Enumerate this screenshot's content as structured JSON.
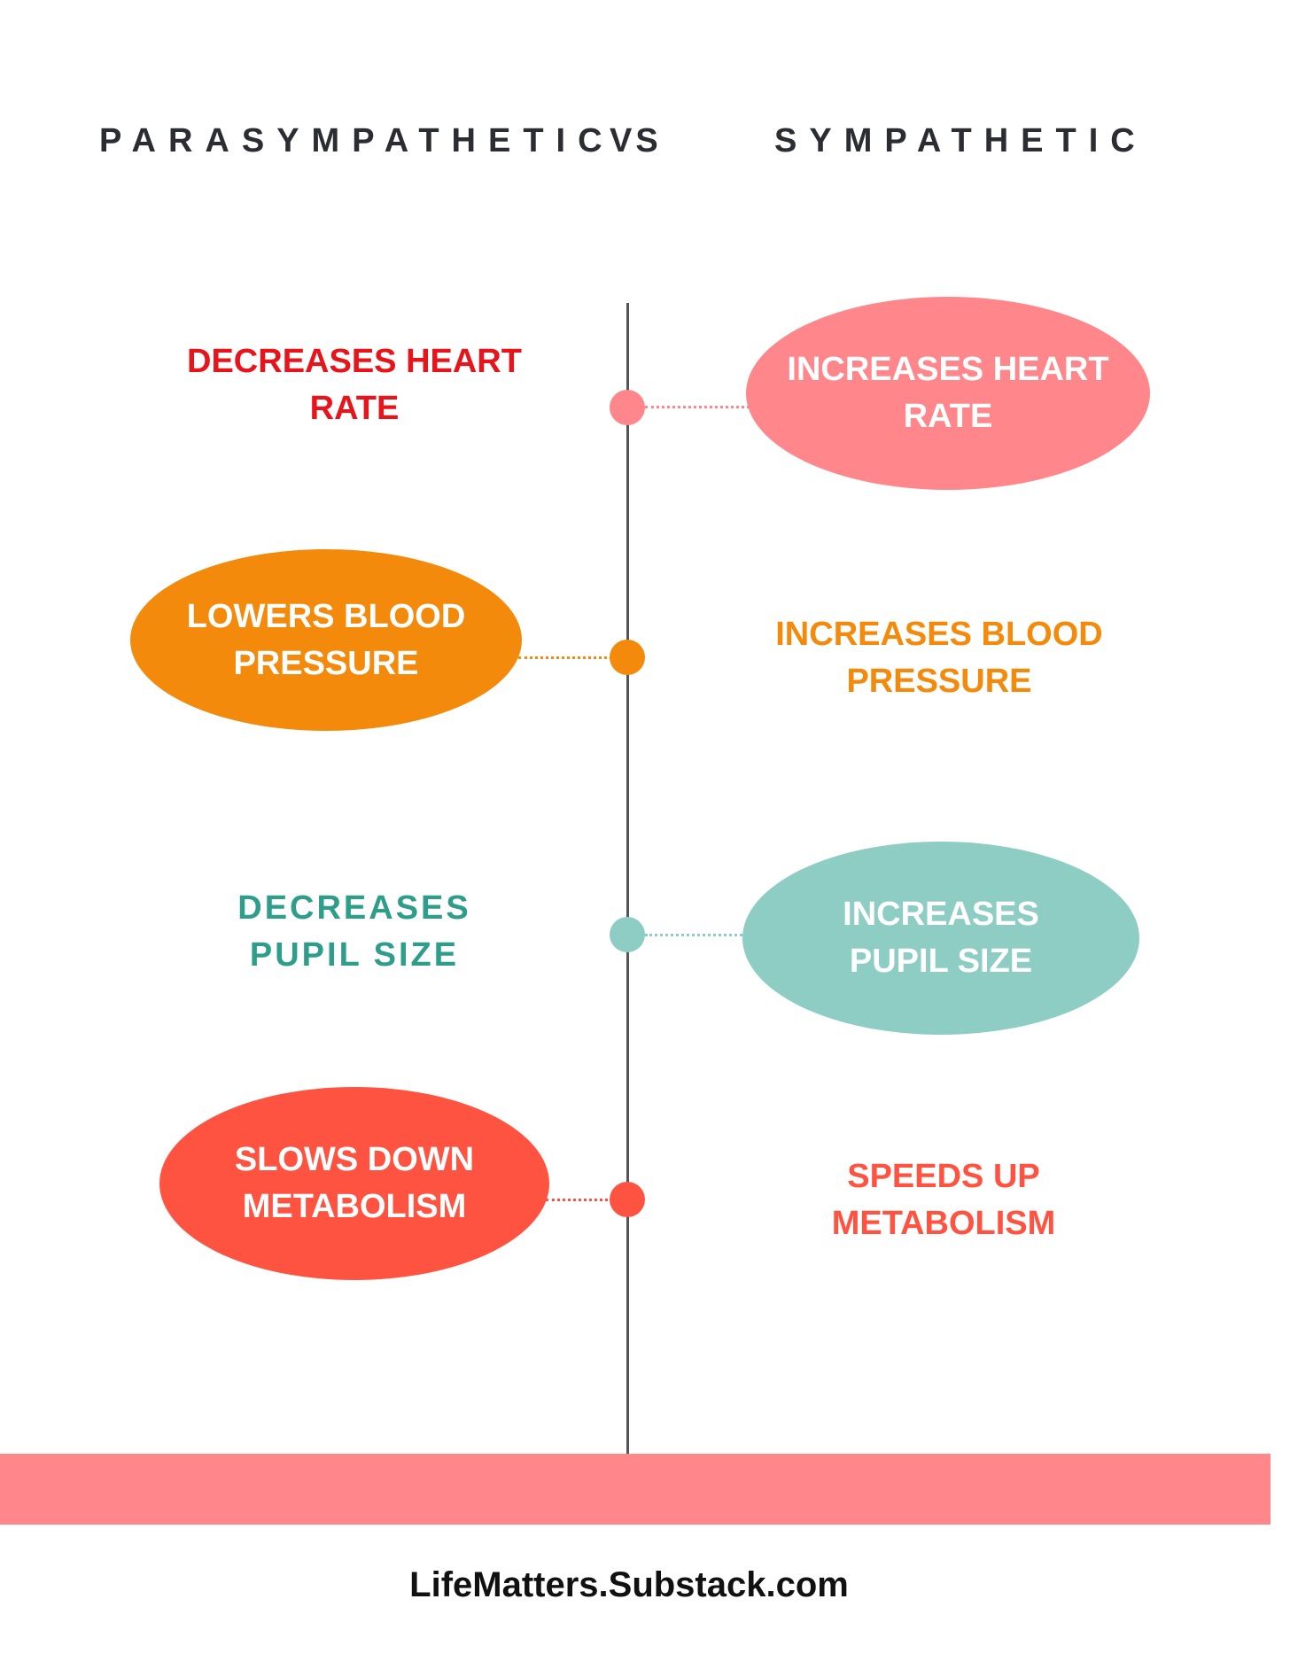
{
  "headings": {
    "left": "PARASYMPATHETIC",
    "vs": "VS",
    "right": "SYMPATHETIC"
  },
  "rows": [
    {
      "left": "DECREASES HEART\nRATE",
      "right": "INCREASES HEART\nRATE",
      "color": "#ff868a",
      "text_color": "#e8141c",
      "bubble_side": "right"
    },
    {
      "left": "LOWERS BLOOD\nPRESSURE",
      "right": "INCREASES BLOOD\nPRESSURE",
      "color": "#f38a0c",
      "text_color": "#f38a0c",
      "bubble_side": "left"
    },
    {
      "left": "DECREASES\nPUPIL SIZE",
      "right": "INCREASES\nPUPIL SIZE",
      "color": "#8ecdc4",
      "text_color": "#2e9e8b",
      "bubble_side": "right"
    },
    {
      "left": "SLOWS DOWN\nMETABOLISM",
      "right": "SPEEDS UP\nMETABOLISM",
      "color": "#ff5341",
      "text_color": "#ff5341",
      "bubble_side": "left"
    }
  ],
  "footer": {
    "text": "LifeMatters.Substack.com",
    "bar_color": "#ff868a"
  }
}
